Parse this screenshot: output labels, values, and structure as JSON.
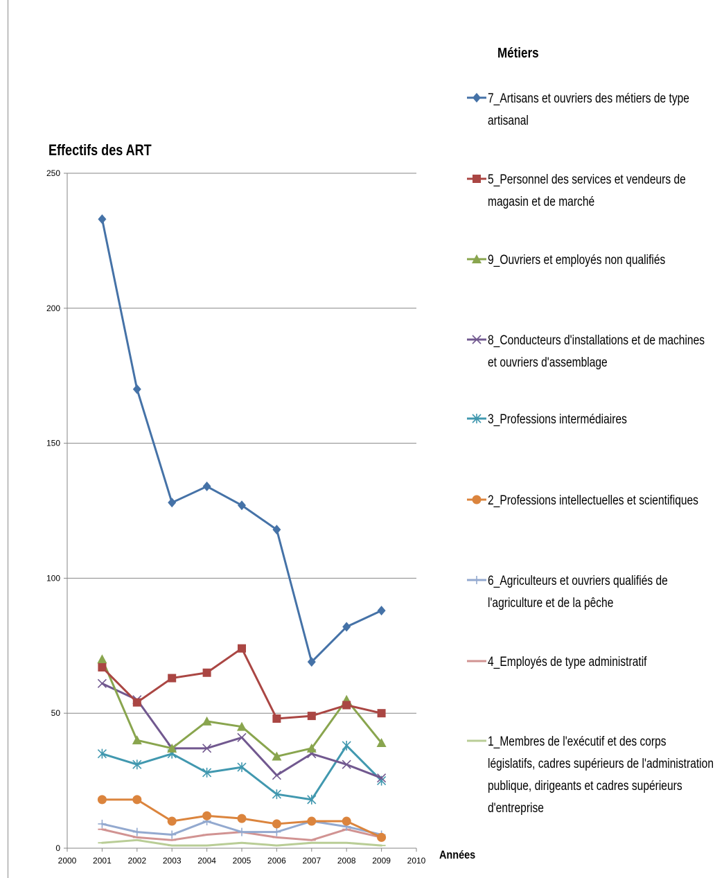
{
  "chart_data": {
    "type": "line",
    "ylabel": "Effectifs des ART",
    "xlabel": "Années",
    "legend_title": "Métiers",
    "legend_position": "right",
    "grid": "horizontal",
    "xlim": [
      2000,
      2010
    ],
    "ylim": [
      0,
      250
    ],
    "x_ticks": [
      "2000",
      "2001",
      "2002",
      "2003",
      "2004",
      "2005",
      "2006",
      "2007",
      "2008",
      "2009",
      "2010"
    ],
    "y_ticks": [
      "0",
      "50",
      "100",
      "150",
      "200",
      "250"
    ],
    "x": [
      2001,
      2002,
      2003,
      2004,
      2005,
      2006,
      2007,
      2008,
      2009
    ],
    "series": [
      {
        "name": "7_Artisans et ouvriers des métiers de type artisanal",
        "color": "#4572a7",
        "marker": "diamond",
        "values": [
          233,
          170,
          128,
          134,
          127,
          118,
          69,
          82,
          88
        ]
      },
      {
        "name": "5_Personnel des services et vendeurs de magasin et de marché",
        "color": "#aa4643",
        "marker": "square",
        "values": [
          67,
          54,
          63,
          65,
          74,
          48,
          49,
          53,
          50
        ]
      },
      {
        "name": "9_Ouvriers et employés non qualifiés",
        "color": "#89a54e",
        "marker": "triangle",
        "values": [
          70,
          40,
          37,
          47,
          45,
          34,
          37,
          55,
          39
        ]
      },
      {
        "name": "8_Conducteurs d'installations et de machines et ouvriers d'assemblage",
        "color": "#71588f",
        "marker": "x",
        "values": [
          61,
          55,
          37,
          37,
          41,
          27,
          35,
          31,
          26
        ]
      },
      {
        "name": "3_Professions intermédiaires",
        "color": "#4198af",
        "marker": "star",
        "values": [
          35,
          31,
          35,
          28,
          30,
          20,
          18,
          38,
          25
        ]
      },
      {
        "name": "2_Professions intellectuelles et scientifiques",
        "color": "#db843d",
        "marker": "circle",
        "values": [
          18,
          18,
          10,
          12,
          11,
          9,
          10,
          10,
          4
        ]
      },
      {
        "name": "6_Agriculteurs et ouvriers qualifiés de l'agriculture et de la pêche",
        "color": "#93a9cf",
        "marker": "plus",
        "values": [
          9,
          6,
          5,
          10,
          6,
          6,
          10,
          8,
          5
        ]
      },
      {
        "name": "4_Employés de type administratif",
        "color": "#d19392",
        "marker": "dash",
        "values": [
          7,
          4,
          3,
          5,
          6,
          4,
          3,
          7,
          4
        ]
      },
      {
        "name": "1_Membres de l'exécutif et des corps législatifs, cadres supérieurs de l'administration publique, dirigeants et cadres supérieurs d'entreprise",
        "color": "#b9cd96",
        "marker": "dash",
        "values": [
          2,
          3,
          1,
          1,
          2,
          1,
          2,
          2,
          1
        ]
      }
    ]
  }
}
